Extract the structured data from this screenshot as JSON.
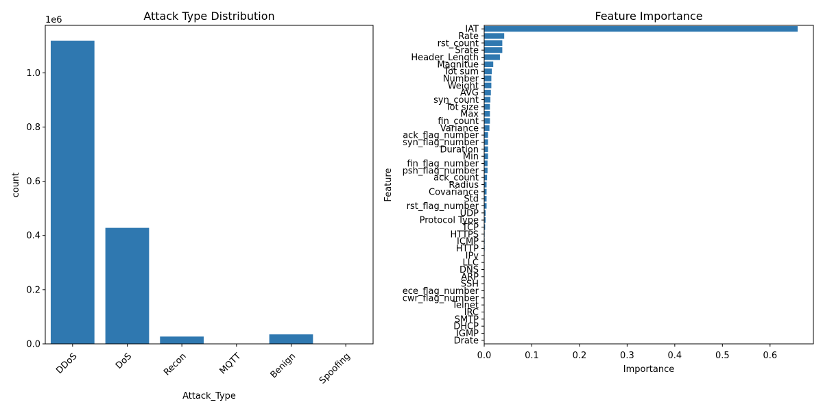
{
  "colors": {
    "bar": "#2f78b0",
    "axis": "#000000",
    "background": "#ffffff"
  },
  "chart_data": [
    {
      "type": "bar",
      "title": "Attack Type Distribution",
      "xlabel": "Attack_Type",
      "ylabel": "count",
      "y_offset_label": "1e6",
      "categories": [
        "DDoS",
        "DoS",
        "Recon",
        "MQTT",
        "Benign",
        "Spoofing"
      ],
      "values": [
        1118000,
        428000,
        27000,
        0,
        35000,
        0
      ],
      "ylim": [
        0,
        1175000
      ],
      "yticks": [
        0.0,
        0.2,
        0.4,
        0.6,
        0.8,
        1.0
      ],
      "ytick_labels": [
        "0.0",
        "0.2",
        "0.4",
        "0.6",
        "0.8",
        "1.0"
      ],
      "grid": false
    },
    {
      "type": "bar",
      "orientation": "horizontal",
      "title": "Feature Importance",
      "xlabel": "Importance",
      "ylabel": "Feature",
      "categories": [
        "IAT",
        "Rate",
        "rst_count",
        "Srate",
        "Header_Length",
        "Magnitue",
        "Tot sum",
        "Number",
        "Weight",
        "AVG",
        "syn_count",
        "Tot size",
        "Max",
        "fin_count",
        "Variance",
        "ack_flag_number",
        "syn_flag_number",
        "Duration",
        "Min",
        "fin_flag_number",
        "psh_flag_number",
        "ack_count",
        "Radius",
        "Covariance",
        "Std",
        "rst_flag_number",
        "UDP",
        "Protocol Type",
        "TCP",
        "HTTPS",
        "ICMP",
        "HTTP",
        "IPv",
        "LLC",
        "DNS",
        "ARP",
        "SSH",
        "ece_flag_number",
        "cwr_flag_number",
        "Telnet",
        "IRC",
        "SMTP",
        "DHCP",
        "IGMP",
        "Drate"
      ],
      "values": [
        0.658,
        0.042,
        0.038,
        0.038,
        0.033,
        0.019,
        0.016,
        0.015,
        0.015,
        0.014,
        0.013,
        0.012,
        0.012,
        0.012,
        0.011,
        0.008,
        0.008,
        0.008,
        0.008,
        0.007,
        0.007,
        0.006,
        0.005,
        0.005,
        0.005,
        0.005,
        0.003,
        0.003,
        0.002,
        0.001,
        0.001,
        0.001,
        0.0005,
        0.0005,
        0.0004,
        0.0004,
        0.0003,
        0.0002,
        0.0002,
        0.0001,
        0.0001,
        0.0001,
        0.0001,
        0.0001,
        0.0
      ],
      "xlim": [
        0,
        0.691
      ],
      "xticks": [
        0.0,
        0.1,
        0.2,
        0.3,
        0.4,
        0.5,
        0.6
      ],
      "xtick_labels": [
        "0.0",
        "0.1",
        "0.2",
        "0.3",
        "0.4",
        "0.5",
        "0.6"
      ],
      "grid": false
    }
  ]
}
